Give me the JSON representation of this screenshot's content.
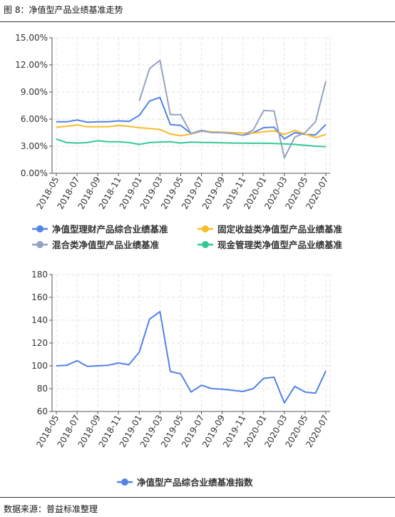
{
  "figure_title": "图 8：净值型产品业绩基准走势",
  "source": "数据来源：普益标准整理",
  "colors": {
    "blue": "#5283e6",
    "yellow": "#f5bd2a",
    "gray": "#97a2c2",
    "green": "#33c995"
  },
  "chart_data": [
    {
      "type": "line",
      "categories": [
        "2018-05",
        "2018-06",
        "2018-07",
        "2018-08",
        "2018-09",
        "2018-10",
        "2018-11",
        "2018-12",
        "2019-01",
        "2019-02",
        "2019-03",
        "2019-04",
        "2019-05",
        "2019-06",
        "2019-07",
        "2019-08",
        "2019-09",
        "2019-10",
        "2019-11",
        "2019-12",
        "2020-01",
        "2020-02",
        "2020-03",
        "2020-04",
        "2020-05",
        "2020-06",
        "2020-07"
      ],
      "tick_labels": [
        "2018-05",
        "2018-07",
        "2018-09",
        "2018-11",
        "2019-01",
        "2019-03",
        "2019-05",
        "2019-07",
        "2019-09",
        "2019-11",
        "2020-01",
        "2020-03",
        "2020-05",
        "2020-07"
      ],
      "ylim": [
        0,
        15
      ],
      "y_ticks": [
        "0.00%",
        "3.00%",
        "6.00%",
        "9.00%",
        "12.00%",
        "15.00%"
      ],
      "grid": true,
      "legend_position": "bottom",
      "series": [
        {
          "name": "净值型理财产品综合业绩基准",
          "color": "#5283e6",
          "values": [
            5.7,
            5.7,
            5.9,
            5.65,
            5.7,
            5.7,
            5.8,
            5.75,
            6.4,
            8.0,
            8.4,
            5.4,
            5.3,
            4.4,
            4.75,
            4.55,
            4.5,
            4.4,
            4.2,
            4.5,
            5.05,
            5.1,
            3.8,
            4.5,
            4.3,
            4.25,
            5.4
          ]
        },
        {
          "name": "固定收益类净值型产品业绩基准",
          "color": "#f5bd2a",
          "values": [
            5.1,
            5.2,
            5.35,
            5.15,
            5.15,
            5.15,
            5.3,
            5.2,
            5.05,
            4.95,
            4.85,
            4.35,
            4.15,
            4.35,
            4.65,
            4.6,
            4.55,
            4.5,
            4.45,
            4.45,
            4.6,
            4.7,
            4.3,
            4.75,
            4.35,
            3.95,
            4.3
          ]
        },
        {
          "name": "混合类净值型产品业绩基准",
          "color": "#97a2c2",
          "values": [
            null,
            null,
            null,
            null,
            null,
            null,
            null,
            null,
            8.0,
            11.6,
            12.5,
            6.5,
            6.5,
            4.4,
            4.7,
            4.5,
            4.5,
            4.4,
            4.2,
            4.8,
            6.95,
            6.9,
            1.7,
            4.0,
            4.5,
            5.7,
            10.2
          ]
        },
        {
          "name": "现金管理类净值型产品业绩基准",
          "color": "#33c995",
          "values": [
            3.8,
            3.4,
            3.35,
            3.4,
            3.6,
            3.5,
            3.5,
            3.4,
            3.2,
            3.4,
            3.45,
            3.5,
            3.35,
            3.45,
            3.42,
            3.4,
            3.38,
            3.35,
            3.33,
            3.32,
            3.32,
            3.3,
            3.25,
            3.2,
            3.1,
            3.0,
            2.95
          ]
        }
      ]
    },
    {
      "type": "line",
      "categories": [
        "2018-05",
        "2018-06",
        "2018-07",
        "2018-08",
        "2018-09",
        "2018-10",
        "2018-11",
        "2018-12",
        "2019-01",
        "2019-02",
        "2019-03",
        "2019-04",
        "2019-05",
        "2019-06",
        "2019-07",
        "2019-08",
        "2019-09",
        "2019-10",
        "2019-11",
        "2019-12",
        "2020-01",
        "2020-02",
        "2020-03",
        "2020-04",
        "2020-05",
        "2020-06",
        "2020-07"
      ],
      "tick_labels": [
        "2018-05",
        "2018-07",
        "2018-09",
        "2018-11",
        "2019-01",
        "2019-03",
        "2019-05",
        "2019-07",
        "2019-09",
        "2019-11",
        "2020-01",
        "2020-03",
        "2020-05",
        "2020-07"
      ],
      "ylim": [
        60,
        180
      ],
      "y_ticks": [
        "60",
        "80",
        "100",
        "120",
        "140",
        "160",
        "180"
      ],
      "grid": true,
      "legend_position": "bottom",
      "series": [
        {
          "name": "净值型产品综合业绩基准指数",
          "color": "#5283e6",
          "values": [
            100,
            100.5,
            104.5,
            99.5,
            100,
            100.5,
            102.5,
            101,
            112,
            141,
            147.5,
            95,
            93,
            77,
            83,
            80,
            79.5,
            78.5,
            77.5,
            80,
            89,
            90,
            67.5,
            82,
            77,
            76,
            95.5
          ]
        }
      ]
    }
  ]
}
